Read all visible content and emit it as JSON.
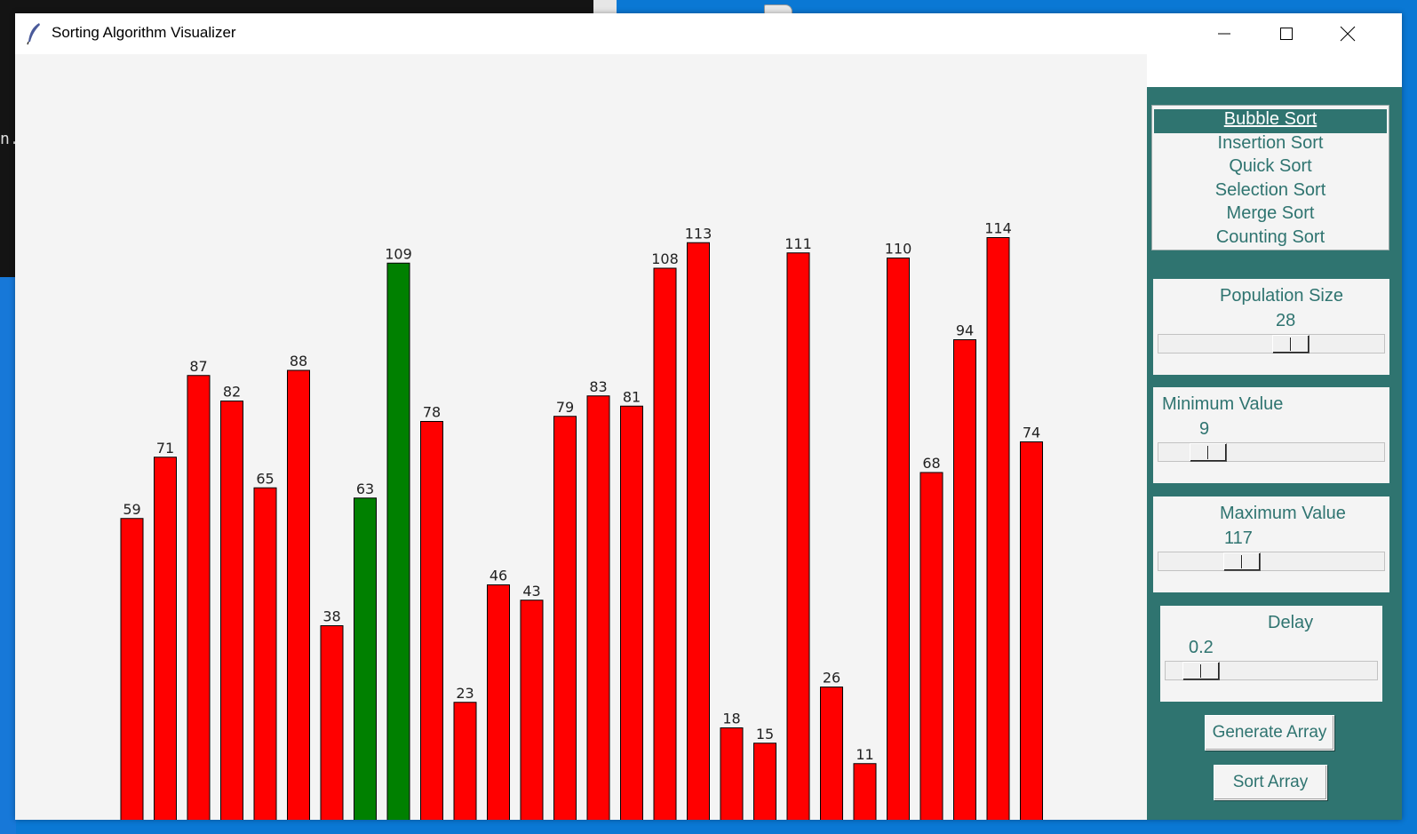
{
  "window": {
    "title": "Sorting Algorithm Visualizer"
  },
  "desktop": {
    "terminal_fragment": "n."
  },
  "algorithms": {
    "items": [
      "Bubble Sort",
      "Insertion Sort",
      "Quick Sort",
      "Selection Sort",
      "Merge Sort",
      "Counting Sort"
    ],
    "selected": "Bubble Sort"
  },
  "controls": {
    "population": {
      "label": "Population Size",
      "value": "28",
      "min": 3,
      "max": 50
    },
    "minimum": {
      "label": "Minimum Value",
      "value": "9",
      "min": 0,
      "max": 100
    },
    "maximum": {
      "label": "Maximum Value",
      "value": "117",
      "min": 100,
      "max": 200
    },
    "delay": {
      "label": "Delay",
      "value": "0.2",
      "min": 0.1,
      "max": 2.0
    }
  },
  "buttons": {
    "generate": "Generate Array",
    "sort": "Sort Array"
  },
  "colors": {
    "bar": "#ff0000",
    "highlight": "#008000",
    "panel": "#2f7470"
  },
  "chart_data": {
    "type": "bar",
    "values": [
      59,
      71,
      87,
      82,
      65,
      88,
      38,
      63,
      109,
      78,
      23,
      46,
      43,
      79,
      83,
      81,
      108,
      113,
      18,
      15,
      111,
      26,
      11,
      110,
      68,
      94,
      114,
      74
    ],
    "highlighted": [
      7,
      8
    ],
    "value_labels": true
  }
}
